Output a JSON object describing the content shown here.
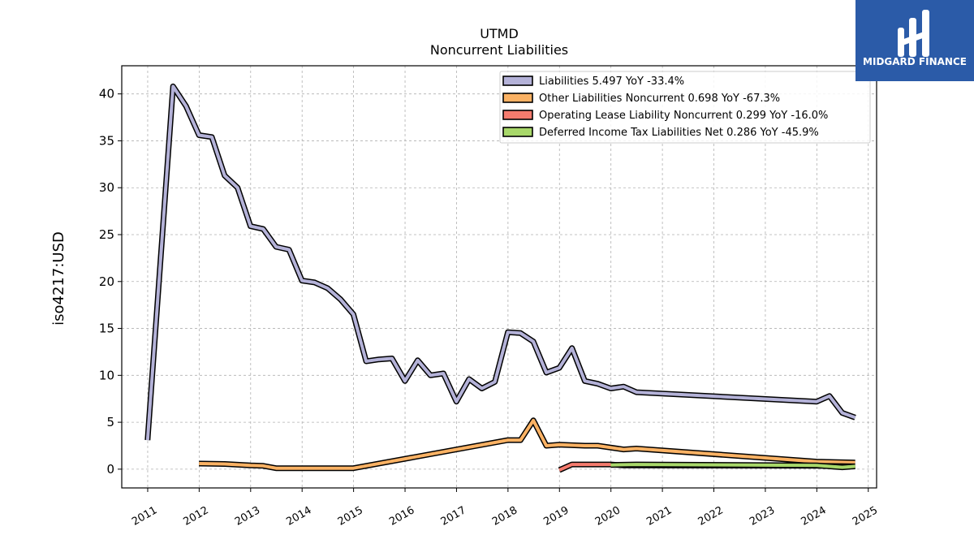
{
  "chart_data": {
    "type": "line",
    "title": "UTMD",
    "subtitle": "Noncurrent  Liabilities",
    "xlabel": "",
    "ylabel": "iso4217:USD",
    "xlim": [
      "2010-07-01",
      "2025-03-01"
    ],
    "ylim": [
      -2,
      43
    ],
    "yticks": [
      0,
      5,
      10,
      15,
      20,
      25,
      30,
      35,
      40
    ],
    "xticks": [
      "2011",
      "2012",
      "2013",
      "2014",
      "2015",
      "2016",
      "2017",
      "2018",
      "2019",
      "2020",
      "2021",
      "2022",
      "2023",
      "2024",
      "2025"
    ],
    "grid": true,
    "legend_position": "top-right",
    "series": [
      {
        "name": "Liabilities  5.497 YoY -33.4%",
        "color": "#b4b2d8",
        "points": [
          [
            "2010-12-31",
            3.1
          ],
          [
            "2011-06-30",
            40.8
          ],
          [
            "2011-09-30",
            38.7
          ],
          [
            "2011-12-31",
            35.6
          ],
          [
            "2012-03-31",
            35.4
          ],
          [
            "2012-06-30",
            31.3
          ],
          [
            "2012-09-30",
            30.0
          ],
          [
            "2012-12-31",
            25.9
          ],
          [
            "2013-03-31",
            25.6
          ],
          [
            "2013-06-30",
            23.7
          ],
          [
            "2013-09-30",
            23.4
          ],
          [
            "2013-12-31",
            20.1
          ],
          [
            "2014-03-31",
            19.9
          ],
          [
            "2014-06-30",
            19.3
          ],
          [
            "2014-09-30",
            18.1
          ],
          [
            "2014-12-31",
            16.5
          ],
          [
            "2015-03-31",
            11.5
          ],
          [
            "2015-06-30",
            11.7
          ],
          [
            "2015-09-30",
            11.8
          ],
          [
            "2015-12-31",
            9.4
          ],
          [
            "2016-03-31",
            11.6
          ],
          [
            "2016-06-30",
            10.0
          ],
          [
            "2016-09-30",
            10.2
          ],
          [
            "2016-12-31",
            7.2
          ],
          [
            "2017-03-31",
            9.6
          ],
          [
            "2017-06-30",
            8.6
          ],
          [
            "2017-09-30",
            9.3
          ],
          [
            "2017-12-31",
            14.6
          ],
          [
            "2018-03-31",
            14.5
          ],
          [
            "2018-06-30",
            13.6
          ],
          [
            "2018-09-30",
            10.3
          ],
          [
            "2018-12-31",
            10.8
          ],
          [
            "2019-03-31",
            12.9
          ],
          [
            "2019-06-30",
            9.4
          ],
          [
            "2019-09-30",
            9.1
          ],
          [
            "2019-12-31",
            8.6
          ],
          [
            "2020-03-31",
            8.8
          ],
          [
            "2020-06-30",
            8.2
          ],
          [
            "2023-12-31",
            7.2
          ],
          [
            "2024-03-31",
            7.8
          ],
          [
            "2024-06-30",
            6.0
          ],
          [
            "2024-09-30",
            5.5
          ]
        ]
      },
      {
        "name": "Other Liabilities Noncurrent  0.698 YoY -67.3%",
        "color": "#fbb264",
        "points": [
          [
            "2011-12-31",
            0.6
          ],
          [
            "2012-06-30",
            0.55
          ],
          [
            "2012-12-31",
            0.4
          ],
          [
            "2013-03-31",
            0.35
          ],
          [
            "2013-06-30",
            0.1
          ],
          [
            "2014-12-31",
            0.1
          ],
          [
            "2017-12-31",
            3.1
          ],
          [
            "2018-03-31",
            3.1
          ],
          [
            "2018-06-30",
            5.2
          ],
          [
            "2018-09-30",
            2.5
          ],
          [
            "2018-12-31",
            2.6
          ],
          [
            "2019-06-30",
            2.5
          ],
          [
            "2019-09-30",
            2.5
          ],
          [
            "2020-03-31",
            2.1
          ],
          [
            "2020-06-30",
            2.2
          ],
          [
            "2022-12-31",
            1.2
          ],
          [
            "2023-12-31",
            0.8
          ],
          [
            "2024-09-30",
            0.7
          ]
        ]
      },
      {
        "name": "Operating Lease Liability Noncurrent  0.299 YoY -16.0%",
        "color": "#f57b6e",
        "points": [
          [
            "2018-12-31",
            -0.1
          ],
          [
            "2019-03-31",
            0.5
          ],
          [
            "2019-06-30",
            0.5
          ],
          [
            "2019-12-31",
            0.5
          ],
          [
            "2020-03-31",
            0.4
          ],
          [
            "2023-12-31",
            0.35
          ],
          [
            "2024-09-30",
            0.3
          ]
        ]
      },
      {
        "name": "Deferred Income Tax Liabilities Net  0.286 YoY -45.9%",
        "color": "#a8d86a",
        "points": [
          [
            "2019-12-31",
            0.45
          ],
          [
            "2020-06-30",
            0.5
          ],
          [
            "2023-12-31",
            0.4
          ],
          [
            "2024-06-30",
            0.2
          ],
          [
            "2024-09-30",
            0.3
          ]
        ]
      }
    ]
  },
  "logo": {
    "text": "MIDGARD FINANCE",
    "background": "#2b5ba8"
  }
}
